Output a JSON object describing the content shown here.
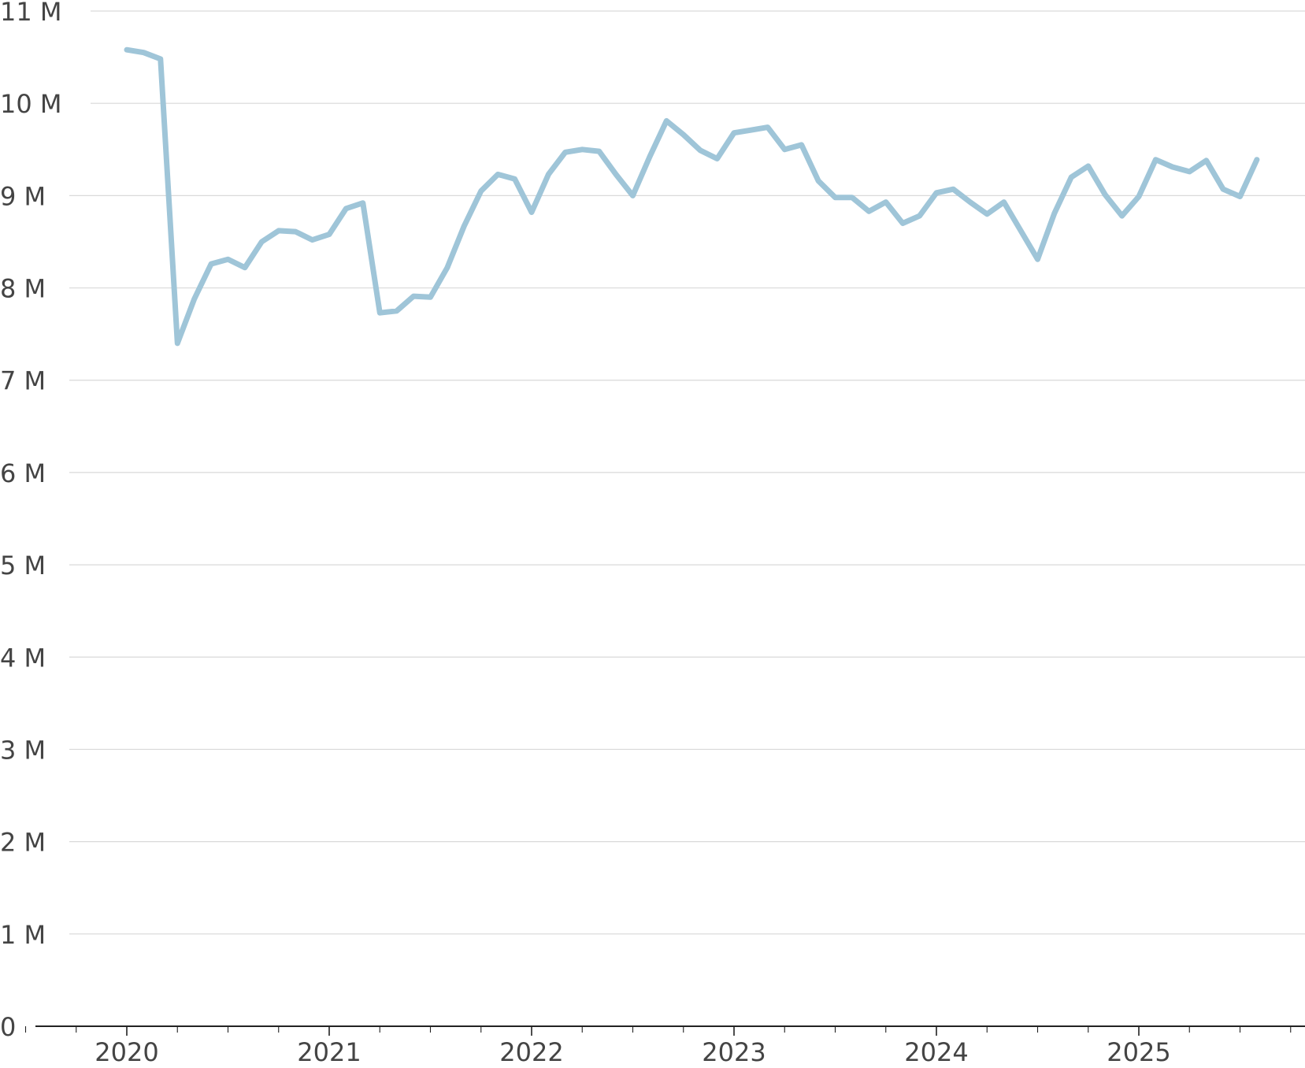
{
  "colors": {
    "series": "#9fc5d8",
    "gridline": "#d9d9d9",
    "axis": "#222222",
    "tick_text": "#444444"
  },
  "chart_data": {
    "type": "line",
    "title": "",
    "xlabel": "",
    "ylabel": "",
    "x_start": "2020-01",
    "x_end": "2025-08",
    "xlim": [
      "2019-07",
      "2026-01"
    ],
    "ylim": [
      0,
      11000000
    ],
    "grid": true,
    "legend": "none",
    "y_ticks": [
      {
        "value": 0,
        "label": "0"
      },
      {
        "value": 1000000,
        "label": "1 M"
      },
      {
        "value": 2000000,
        "label": "2 M"
      },
      {
        "value": 3000000,
        "label": "3 M"
      },
      {
        "value": 4000000,
        "label": "4 M"
      },
      {
        "value": 5000000,
        "label": "5 M"
      },
      {
        "value": 6000000,
        "label": "6 M"
      },
      {
        "value": 7000000,
        "label": "7 M"
      },
      {
        "value": 8000000,
        "label": "8 M"
      },
      {
        "value": 9000000,
        "label": "9 M"
      },
      {
        "value": 10000000,
        "label": "10 M"
      },
      {
        "value": 11000000,
        "label": "11 M"
      }
    ],
    "x_ticks": [
      {
        "value": "2020-01",
        "label": "2020"
      },
      {
        "value": "2021-01",
        "label": "2021"
      },
      {
        "value": "2022-01",
        "label": "2022"
      },
      {
        "value": "2023-01",
        "label": "2023"
      },
      {
        "value": "2024-01",
        "label": "2024"
      },
      {
        "value": "2025-01",
        "label": "2025"
      }
    ],
    "series": [
      {
        "dates": [
          "2020-01",
          "2020-02",
          "2020-03",
          "2020-04",
          "2020-05",
          "2020-06",
          "2020-07",
          "2020-08",
          "2020-09",
          "2020-10",
          "2020-11",
          "2020-12",
          "2021-01",
          "2021-02",
          "2021-03",
          "2021-04",
          "2021-05",
          "2021-06",
          "2021-07",
          "2021-08",
          "2021-09",
          "2021-10",
          "2021-11",
          "2021-12",
          "2022-01",
          "2022-02",
          "2022-03",
          "2022-04",
          "2022-05",
          "2022-06",
          "2022-07",
          "2022-08",
          "2022-09",
          "2022-10",
          "2022-11",
          "2022-12",
          "2023-01",
          "2023-02",
          "2023-03",
          "2023-04",
          "2023-05",
          "2023-06",
          "2023-07",
          "2023-08",
          "2023-09",
          "2023-10",
          "2023-11",
          "2023-12",
          "2024-01",
          "2024-02",
          "2024-03",
          "2024-04",
          "2024-05",
          "2024-06",
          "2024-07",
          "2024-08",
          "2024-09",
          "2024-10",
          "2024-11",
          "2024-12",
          "2025-01",
          "2025-02",
          "2025-03",
          "2025-04",
          "2025-05",
          "2025-06",
          "2025-07",
          "2025-08"
        ],
        "values": [
          10580000,
          10550000,
          10480000,
          7400000,
          7880000,
          8260000,
          8310000,
          8220000,
          8500000,
          8620000,
          8610000,
          8520000,
          8580000,
          8860000,
          8920000,
          7730000,
          7750000,
          7910000,
          7900000,
          8220000,
          8670000,
          9050000,
          9230000,
          9180000,
          8820000,
          9230000,
          9470000,
          9500000,
          9480000,
          9230000,
          9000000,
          9420000,
          9810000,
          9660000,
          9490000,
          9400000,
          9680000,
          9710000,
          9740000,
          9500000,
          9550000,
          9160000,
          8980000,
          8980000,
          8830000,
          8930000,
          8700000,
          8780000,
          9030000,
          9070000,
          8930000,
          8800000,
          8930000,
          8620000,
          8310000,
          8810000,
          9200000,
          9320000,
          9010000,
          8780000,
          8990000,
          9390000,
          9310000,
          9260000,
          9380000,
          9070000,
          8990000,
          9390000
        ]
      }
    ]
  }
}
